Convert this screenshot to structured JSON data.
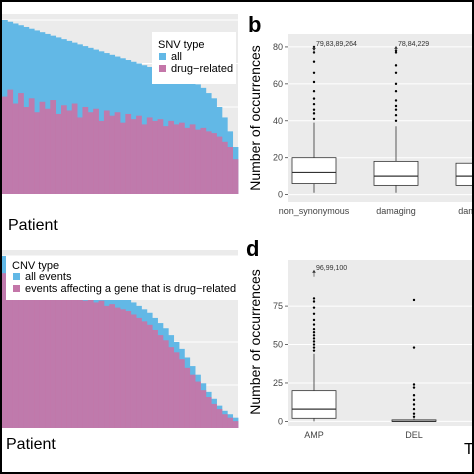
{
  "colors": {
    "all": "#62b8e6",
    "drug_related": "#c476a9",
    "panel_bg": "#ebebeb",
    "grid": "#ffffff",
    "box_fill": "#ffffff",
    "box_line": "#333333"
  },
  "panel_a": {
    "xlabel": "Patient",
    "legend": {
      "title": "SNV type",
      "items": [
        "all",
        "drug−related"
      ]
    }
  },
  "panel_b": {
    "letter": "b",
    "ylabel": "Number of occurrences",
    "annotations": [
      "79,83,89,264",
      "78,84,229"
    ]
  },
  "panel_c": {
    "xlabel": "Patient",
    "legend": {
      "title": "CNV type",
      "items": [
        "all events",
        "events affecting a gene that is drug−related"
      ]
    }
  },
  "panel_d": {
    "letter": "d",
    "ylabel": "Number of occurrences",
    "annotations": [
      "96,99,100"
    ],
    "cutoff_label": "T"
  },
  "chart_data": [
    {
      "id": "panel-a",
      "type": "bar",
      "title": "",
      "xlabel": "Patient",
      "ylabel": "",
      "legend_title": "SNV type",
      "legend_position": "top-right",
      "grid": true,
      "stacked": false,
      "series": [
        {
          "name": "all",
          "color": "#62b8e6",
          "values": [
            1.0,
            0.99,
            0.98,
            0.97,
            0.96,
            0.95,
            0.94,
            0.93,
            0.92,
            0.91,
            0.9,
            0.89,
            0.88,
            0.87,
            0.86,
            0.85,
            0.84,
            0.83,
            0.82,
            0.81,
            0.8,
            0.79,
            0.78,
            0.77,
            0.76,
            0.75,
            0.74,
            0.73,
            0.72,
            0.71,
            0.7,
            0.69,
            0.68,
            0.67,
            0.66,
            0.65,
            0.63,
            0.61,
            0.58,
            0.55,
            0.5,
            0.44,
            0.36,
            0.27
          ]
        },
        {
          "name": "drug−related",
          "color": "#c476a9",
          "values": [
            0.56,
            0.6,
            0.52,
            0.58,
            0.5,
            0.55,
            0.47,
            0.53,
            0.49,
            0.54,
            0.46,
            0.51,
            0.48,
            0.52,
            0.44,
            0.5,
            0.47,
            0.49,
            0.42,
            0.48,
            0.45,
            0.47,
            0.41,
            0.46,
            0.43,
            0.45,
            0.4,
            0.44,
            0.42,
            0.43,
            0.39,
            0.42,
            0.4,
            0.41,
            0.38,
            0.4,
            0.37,
            0.38,
            0.36,
            0.35,
            0.33,
            0.3,
            0.27,
            0.2
          ]
        }
      ]
    },
    {
      "id": "panel-b",
      "type": "box",
      "title": "",
      "xlabel": "",
      "ylabel": "Number of occurrences",
      "ylim": [
        -4,
        87
      ],
      "yticks": [
        0,
        20,
        40,
        60,
        80
      ],
      "grid": true,
      "categories": [
        "non_synonymous",
        "damaging",
        "damaging"
      ],
      "boxes": [
        {
          "q1": 6,
          "median": 12,
          "q3": 20,
          "whisker_low": 1,
          "whisker_high": 39,
          "outliers": [
            41,
            44,
            46,
            49,
            52,
            56,
            61,
            66,
            72,
            77,
            79,
            80
          ]
        },
        {
          "q1": 5,
          "median": 10,
          "q3": 18,
          "whisker_low": 1,
          "whisker_high": 37,
          "outliers": [
            40,
            43,
            46,
            48,
            51,
            56,
            60,
            66,
            70,
            77,
            78
          ]
        },
        {
          "q1": 5,
          "median": 10,
          "q3": 17,
          "whisker_low": 1,
          "whisker_high": 36,
          "outliers": []
        }
      ],
      "annotations": [
        {
          "category": 0,
          "y": 80,
          "text": "79,83,89,264"
        },
        {
          "category": 1,
          "y": 80,
          "text": "78,84,229"
        }
      ]
    },
    {
      "id": "panel-c",
      "type": "bar",
      "title": "",
      "xlabel": "Patient",
      "ylabel": "",
      "legend_title": "CNV type",
      "legend_position": "top-right",
      "grid": true,
      "stacked": false,
      "series": [
        {
          "name": "all events",
          "color": "#62b8e6",
          "values": [
            1.0,
            0.99,
            0.98,
            0.97,
            0.96,
            0.95,
            0.94,
            0.93,
            0.92,
            0.91,
            0.9,
            0.89,
            0.88,
            0.87,
            0.86,
            0.85,
            0.84,
            0.83,
            0.82,
            0.81,
            0.8,
            0.79,
            0.77,
            0.75,
            0.73,
            0.71,
            0.69,
            0.67,
            0.64,
            0.61,
            0.58,
            0.54,
            0.5,
            0.46,
            0.41,
            0.36,
            0.31,
            0.26,
            0.21,
            0.17,
            0.13,
            0.1,
            0.08,
            0.06
          ]
        },
        {
          "name": "events affecting a gene that is drug−related",
          "color": "#c476a9",
          "values": [
            0.9,
            0.86,
            0.89,
            0.84,
            0.87,
            0.82,
            0.85,
            0.8,
            0.83,
            0.79,
            0.81,
            0.77,
            0.8,
            0.76,
            0.78,
            0.74,
            0.76,
            0.73,
            0.74,
            0.71,
            0.72,
            0.7,
            0.69,
            0.68,
            0.66,
            0.64,
            0.62,
            0.6,
            0.57,
            0.54,
            0.51,
            0.47,
            0.44,
            0.4,
            0.35,
            0.31,
            0.27,
            0.22,
            0.18,
            0.14,
            0.11,
            0.08,
            0.06,
            0.04
          ]
        }
      ]
    },
    {
      "id": "panel-d",
      "type": "box",
      "title": "",
      "xlabel": "",
      "ylabel": "Number of occurrences",
      "ylim": [
        -3,
        105
      ],
      "yticks": [
        0,
        25,
        50,
        75
      ],
      "grid": true,
      "categories": [
        "AMP",
        "DEL"
      ],
      "boxes": [
        {
          "q1": 2,
          "median": 8,
          "q3": 20,
          "whisker_low": 0,
          "whisker_high": 44,
          "outliers": [
            46,
            48,
            50,
            52,
            54,
            56,
            58,
            60,
            63,
            66,
            70,
            74,
            78,
            80
          ]
        },
        {
          "q1": 0,
          "median": 0,
          "q3": 1,
          "whisker_low": 0,
          "whisker_high": 2,
          "outliers": [
            3,
            5,
            8,
            11,
            14,
            17,
            22,
            24,
            48,
            79
          ]
        }
      ],
      "annotations": [
        {
          "category": 0,
          "y": 98,
          "text": "96,99,100"
        }
      ]
    }
  ]
}
